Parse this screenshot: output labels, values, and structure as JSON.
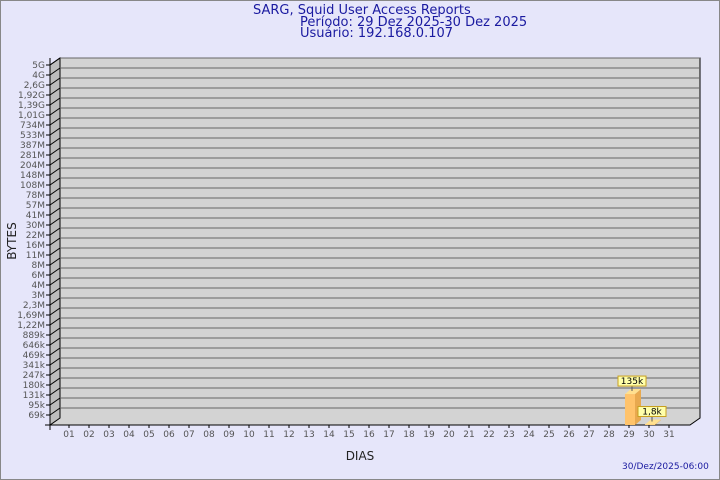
{
  "header": {
    "title": "SARG, Squid User Access Reports",
    "period": "Período: 29 Dez 2025-30 Dez 2025",
    "user": "Usuário: 192.168.0.107"
  },
  "footer": {
    "timestamp": "30/Dez/2025-06:00"
  },
  "colors": {
    "background": "#e6e6fa",
    "plot": "#d3d3d3",
    "bar": "#ffc36b",
    "label_box": "#ffffaa",
    "title": "#1a1aa0"
  },
  "chart_data": {
    "type": "bar",
    "xlabel": "DIAS",
    "ylabel": "BYTES",
    "grid": true,
    "categories": [
      "01",
      "02",
      "03",
      "04",
      "05",
      "06",
      "07",
      "08",
      "09",
      "10",
      "11",
      "12",
      "13",
      "14",
      "15",
      "16",
      "17",
      "18",
      "19",
      "20",
      "21",
      "22",
      "23",
      "24",
      "25",
      "26",
      "27",
      "28",
      "29",
      "30",
      "31"
    ],
    "y_ticks": [
      "5G",
      "4G",
      "2,6G",
      "1,92G",
      "1,39G",
      "1,01G",
      "734M",
      "533M",
      "387M",
      "281M",
      "204M",
      "148M",
      "108M",
      "78M",
      "57M",
      "41M",
      "30M",
      "22M",
      "16M",
      "11M",
      "8M",
      "6M",
      "4M",
      "3M",
      "2,3M",
      "1,69M",
      "1,22M",
      "889k",
      "646k",
      "469k",
      "341k",
      "247k",
      "180k",
      "131k",
      "95k",
      "69k"
    ],
    "bars": [
      {
        "category": "29",
        "value": 135000,
        "label": "135k"
      },
      {
        "category": "30",
        "value": 1800,
        "label": "1,8k"
      }
    ]
  }
}
